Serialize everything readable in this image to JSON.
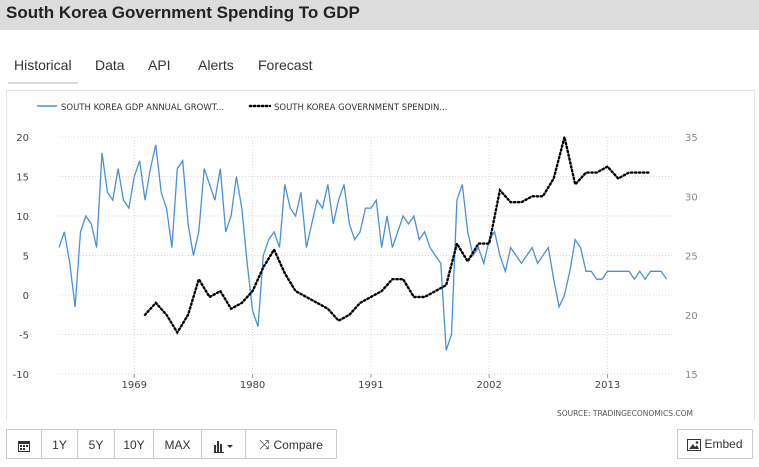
{
  "page": {
    "title": "South Korea Government Spending To GDP"
  },
  "tabs": [
    {
      "label": "Historical"
    },
    {
      "label": "Data"
    },
    {
      "label": "API"
    },
    {
      "label": "Alerts"
    },
    {
      "label": "Forecast"
    }
  ],
  "toolbar": {
    "ranges": [
      "1Y",
      "5Y",
      "10Y",
      "MAX"
    ],
    "compare_label": "Compare",
    "embed_label": "Embed"
  },
  "colors": {
    "series_gdp": "#4a90d9",
    "series_spending": "#000000",
    "header_bg": "#dcdcdc"
  },
  "chart_data": {
    "type": "line",
    "title": "",
    "source": "SOURCE: TRADINGECONOMICS.COM",
    "legend_position": "top-left",
    "grid": true,
    "x_ticks": [
      "1969",
      "1980",
      "1991",
      "2002",
      "2013"
    ],
    "xlim": [
      1962,
      2019
    ],
    "y_left": {
      "ticks": [
        20,
        15,
        10,
        5,
        0,
        -5,
        -10
      ],
      "ylim": [
        -10,
        20
      ]
    },
    "y_right": {
      "ticks": [
        35,
        30,
        25,
        20,
        15
      ],
      "ylim": [
        15,
        35
      ]
    },
    "series": [
      {
        "name": "SOUTH KOREA GDP ANNUAL GROWT...",
        "axis": "left",
        "style": "solid",
        "x": [
          1962.0,
          1962.5,
          1963.0,
          1963.5,
          1964.0,
          1964.5,
          1965.0,
          1965.5,
          1966.0,
          1966.5,
          1967.0,
          1967.5,
          1968.0,
          1968.5,
          1969.0,
          1969.5,
          1970.0,
          1970.5,
          1971.0,
          1971.5,
          1972.0,
          1972.5,
          1973.0,
          1973.5,
          1974.0,
          1974.5,
          1975.0,
          1975.5,
          1976.0,
          1976.5,
          1977.0,
          1977.5,
          1978.0,
          1978.5,
          1979.0,
          1979.5,
          1980.0,
          1980.5,
          1981.0,
          1981.5,
          1982.0,
          1982.5,
          1983.0,
          1983.5,
          1984.0,
          1984.5,
          1985.0,
          1985.5,
          1986.0,
          1986.5,
          1987.0,
          1987.5,
          1988.0,
          1988.5,
          1989.0,
          1989.5,
          1990.0,
          1990.5,
          1991.0,
          1991.5,
          1992.0,
          1992.5,
          1993.0,
          1993.5,
          1994.0,
          1994.5,
          1995.0,
          1995.5,
          1996.0,
          1996.5,
          1997.0,
          1997.5,
          1998.0,
          1998.5,
          1999.0,
          1999.5,
          2000.0,
          2000.5,
          2001.0,
          2001.5,
          2002.0,
          2002.5,
          2003.0,
          2003.5,
          2004.0,
          2004.5,
          2005.0,
          2005.5,
          2006.0,
          2006.5,
          2007.0,
          2007.5,
          2008.0,
          2008.5,
          2009.0,
          2009.5,
          2010.0,
          2010.5,
          2011.0,
          2011.5,
          2012.0,
          2012.5,
          2013.0,
          2013.5,
          2014.0,
          2014.5,
          2015.0,
          2015.5,
          2016.0,
          2016.5,
          2017.0,
          2017.5,
          2018.0,
          2018.5
        ],
        "values": [
          6,
          8,
          4,
          -1.5,
          8,
          10,
          9,
          6,
          18,
          13,
          12,
          16,
          12,
          11,
          15,
          17,
          12,
          16,
          19,
          13,
          11,
          6,
          16,
          17,
          9,
          5,
          8,
          16,
          14,
          12,
          16,
          8,
          10,
          15,
          11,
          4,
          -2,
          -4,
          5,
          7,
          8,
          6,
          14,
          11,
          10,
          13,
          6,
          9,
          12,
          11,
          14,
          9,
          12,
          14,
          9,
          7,
          8,
          11,
          11,
          12,
          6,
          10,
          6,
          8,
          10,
          9,
          10,
          7,
          8,
          6,
          5,
          4,
          -7,
          -5,
          12,
          14,
          8,
          5,
          6,
          4,
          7,
          8,
          5,
          3,
          6,
          5,
          4,
          5,
          6,
          4,
          5,
          6,
          2,
          -1.5,
          0,
          3,
          7,
          6,
          3,
          3,
          2,
          2,
          3,
          3,
          3,
          3,
          3,
          2,
          3,
          2,
          3,
          3,
          3,
          2
        ],
        "color_key": "series_gdp"
      },
      {
        "name": "SOUTH KOREA GOVERNMENT SPENDIN...",
        "axis": "right",
        "style": "dotted",
        "x": [
          1970.0,
          1971.0,
          1972.0,
          1973.0,
          1974.0,
          1975.0,
          1976.0,
          1977.0,
          1978.0,
          1979.0,
          1980.0,
          1981.0,
          1982.0,
          1983.0,
          1984.0,
          1985.0,
          1986.0,
          1987.0,
          1988.0,
          1989.0,
          1990.0,
          1991.0,
          1992.0,
          1993.0,
          1994.0,
          1995.0,
          1996.0,
          1997.0,
          1998.0,
          1999.0,
          2000.0,
          2001.0,
          2002.0,
          2003.0,
          2004.0,
          2005.0,
          2006.0,
          2007.0,
          2008.0,
          2009.0,
          2010.0,
          2011.0,
          2012.0,
          2013.0,
          2014.0,
          2015.0,
          2016.0,
          2017.0
        ],
        "values": [
          20,
          21,
          20,
          18.5,
          20,
          23,
          21.5,
          22,
          20.5,
          21,
          22,
          24,
          25.5,
          23.5,
          22,
          21.5,
          21,
          20.5,
          19.5,
          20,
          21,
          21.5,
          22,
          23,
          23,
          21.5,
          21.5,
          22,
          22.5,
          26,
          24.5,
          26,
          26,
          30.5,
          29.5,
          29.5,
          30,
          30,
          31.5,
          35,
          31,
          32,
          32,
          32.5,
          31.5,
          32,
          32,
          32
        ],
        "color_key": "series_spending"
      }
    ]
  }
}
